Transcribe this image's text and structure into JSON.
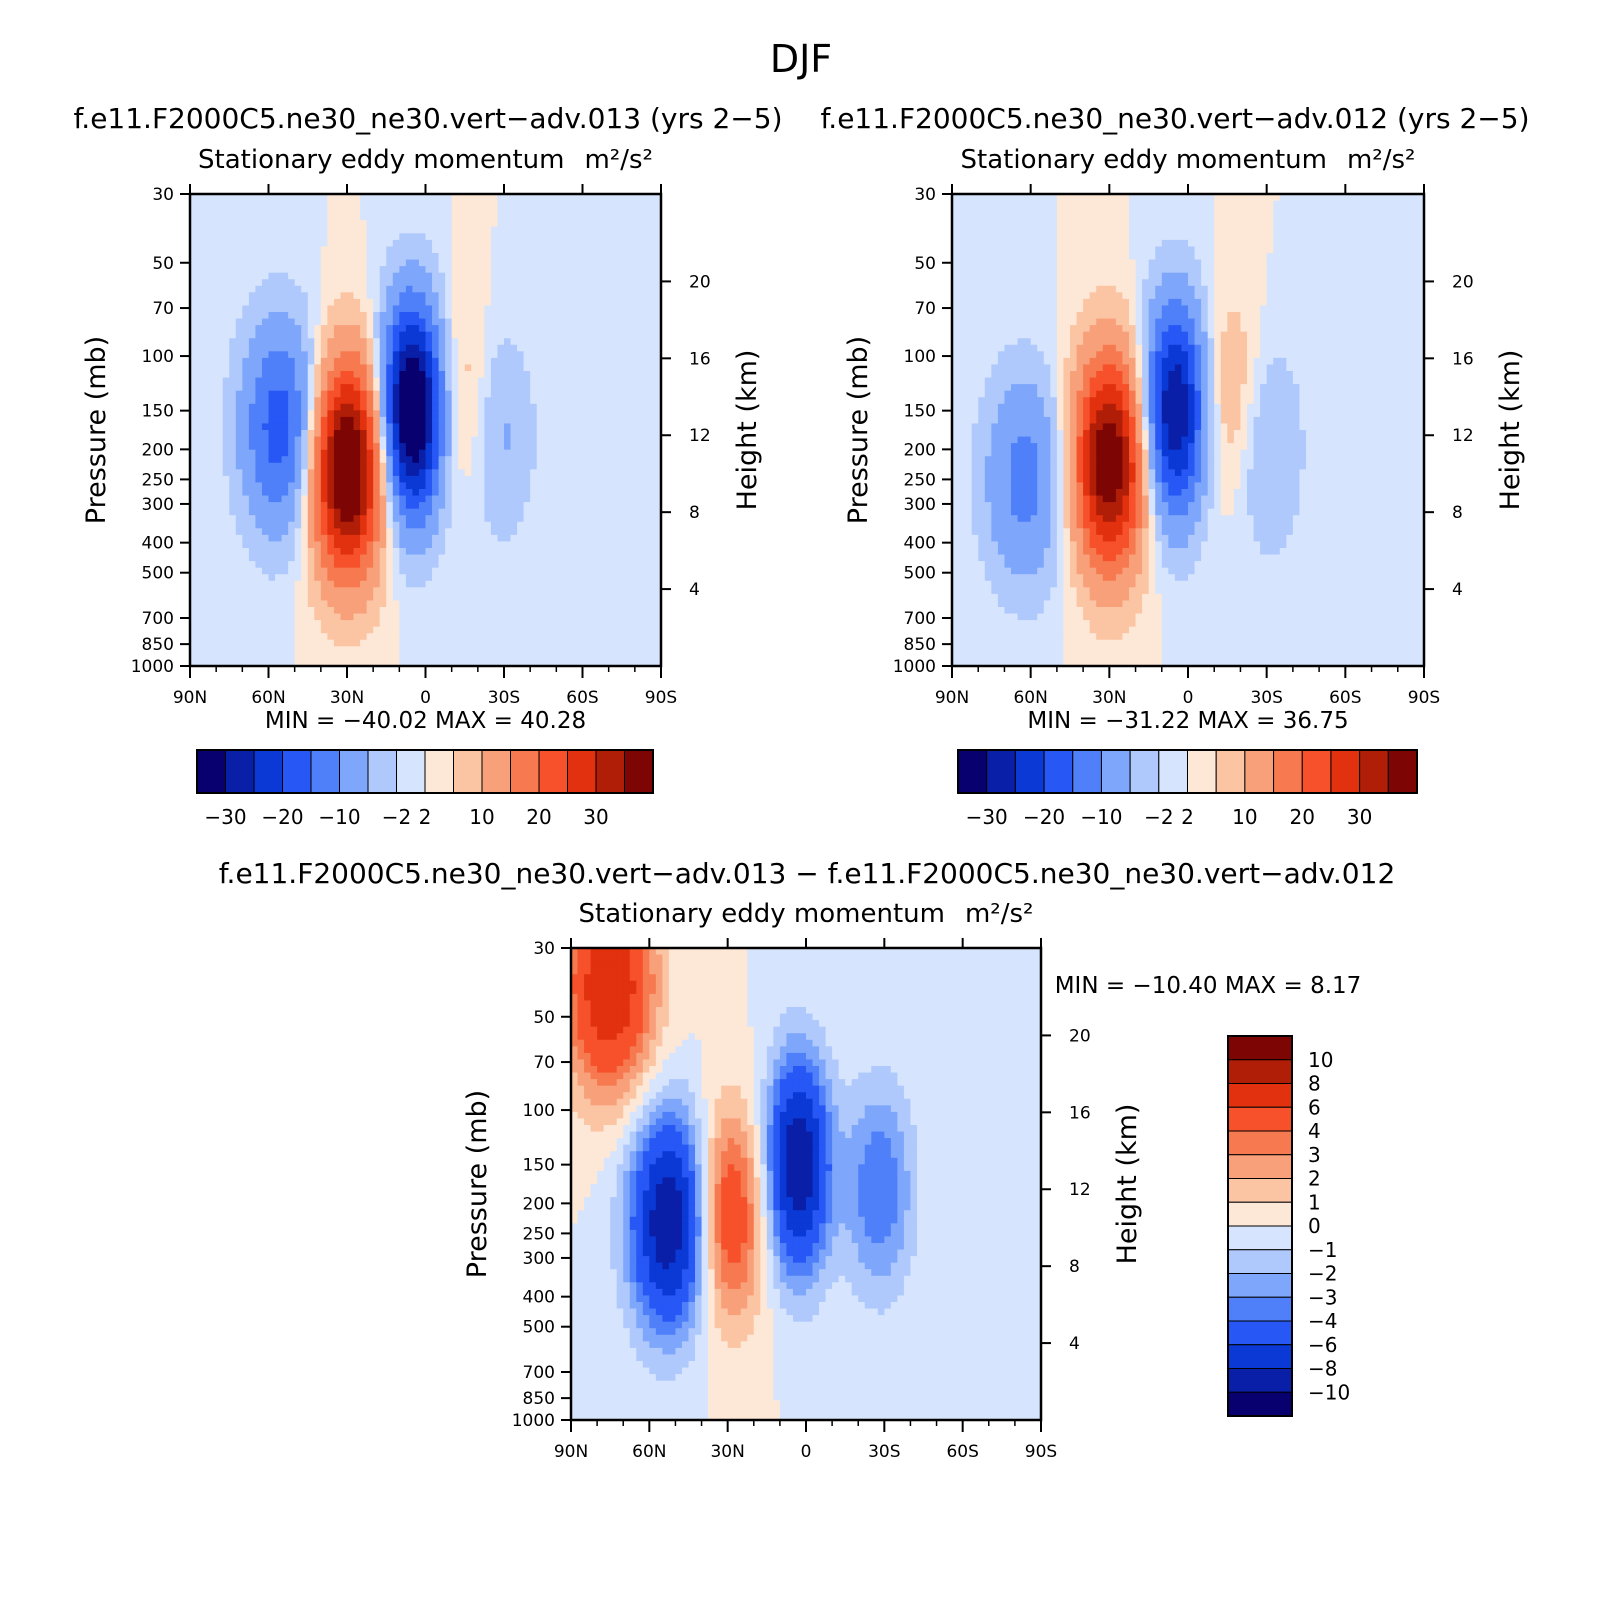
{
  "figure_title": "DJF",
  "colors": {
    "main": [
      "#08006e",
      "#0a1fa8",
      "#0b39d6",
      "#2757f5",
      "#4f80fa",
      "#7ea7fc",
      "#b0c9fd",
      "#d6e5fd",
      "#fde8d7",
      "#fbc5a4",
      "#f8a07a",
      "#f67950",
      "#f7512b",
      "#e2310f",
      "#b11e08",
      "#7d0604"
    ],
    "diff": [
      "#08006e",
      "#0a1fa8",
      "#0b39d6",
      "#2757f5",
      "#4f80fa",
      "#7ea7fc",
      "#b0c9fd",
      "#d6e5fd",
      "#fde8d7",
      "#fbc5a4",
      "#f8a07a",
      "#f67950",
      "#f7512b",
      "#e2310f",
      "#b11e08",
      "#7d0604"
    ],
    "background_light_blue": "#d6e5fd"
  },
  "chart_data": [
    {
      "id": "p1",
      "type": "contour",
      "title": "f.e11.F2000C5.ne30_ne30.vert−adv.013 (yrs 2−5)",
      "subtitle": "Stationary eddy momentum",
      "units": "m²/s²",
      "xlabel": "",
      "ylabel": "Pressure (mb)",
      "ylabel_right": "Height (km)",
      "x_ticks": [
        "90N",
        "60N",
        "30N",
        "0",
        "30S",
        "60S",
        "90S"
      ],
      "xlim": [
        90,
        -90
      ],
      "y_ticks": [
        "30",
        "50",
        "70",
        "100",
        "150",
        "200",
        "250",
        "300",
        "400",
        "500",
        "700",
        "850",
        "1000"
      ],
      "ylim": [
        1000,
        30
      ],
      "right_ticks": [
        "20",
        "16",
        "12",
        "8",
        "4"
      ],
      "stats": "MIN = −40.02   MAX =   40.28",
      "levels": [
        -30,
        -25,
        -20,
        -15,
        -10,
        -5,
        -2,
        0,
        2,
        5,
        10,
        15,
        20,
        25,
        30
      ],
      "colorbar_labels": [
        "−30",
        "−20",
        "−10",
        "−2",
        "2",
        "10",
        "20",
        "30"
      ],
      "features": [
        {
          "lat": 55,
          "p": 170,
          "sign": -1,
          "amp": 18
        },
        {
          "lat": 30,
          "p": 230,
          "sign": 1,
          "amp": 40
        },
        {
          "lat": 5,
          "p": 150,
          "sign": -1,
          "amp": 40
        },
        {
          "lat": -13,
          "p": 140,
          "sign": 1,
          "amp": 6
        },
        {
          "lat": -28,
          "p": 180,
          "sign": -1,
          "amp": 6
        }
      ]
    },
    {
      "id": "p2",
      "type": "contour",
      "title": "f.e11.F2000C5.ne30_ne30.vert−adv.012 (yrs 2−5)",
      "subtitle": "Stationary eddy momentum",
      "units": "m²/s²",
      "xlabel": "",
      "ylabel": "Pressure (mb)",
      "ylabel_right": "Height (km)",
      "x_ticks": [
        "90N",
        "60N",
        "30N",
        "0",
        "30S",
        "60S",
        "90S"
      ],
      "xlim": [
        90,
        -90
      ],
      "y_ticks": [
        "30",
        "50",
        "70",
        "100",
        "150",
        "200",
        "250",
        "300",
        "400",
        "500",
        "700",
        "850",
        "1000"
      ],
      "ylim": [
        1000,
        30
      ],
      "right_ticks": [
        "20",
        "16",
        "12",
        "8",
        "4"
      ],
      "stats": "MIN = −31.22   MAX =   36.75",
      "levels": [
        -30,
        -25,
        -20,
        -15,
        -10,
        -5,
        -2,
        0,
        2,
        5,
        10,
        15,
        20,
        25,
        30
      ],
      "colorbar_labels": [
        "−30",
        "−20",
        "−10",
        "−2",
        "2",
        "10",
        "20",
        "30"
      ],
      "features": [
        {
          "lat": 62,
          "p": 250,
          "sign": -1,
          "amp": 12
        },
        {
          "lat": 30,
          "p": 220,
          "sign": 1,
          "amp": 36
        },
        {
          "lat": 5,
          "p": 150,
          "sign": -1,
          "amp": 31
        },
        {
          "lat": -16,
          "p": 140,
          "sign": 1,
          "amp": 6
        },
        {
          "lat": -30,
          "p": 200,
          "sign": -1,
          "amp": 6
        }
      ]
    },
    {
      "id": "p3",
      "type": "contour",
      "title": "f.e11.F2000C5.ne30_ne30.vert−adv.013 − f.e11.F2000C5.ne30_ne30.vert−adv.012",
      "subtitle": "Stationary eddy momentum",
      "units": "m²/s²",
      "xlabel": "",
      "ylabel": "Pressure (mb)",
      "ylabel_right": "Height (km)",
      "x_ticks": [
        "90N",
        "60N",
        "30N",
        "0",
        "30S",
        "60S",
        "90S"
      ],
      "xlim": [
        90,
        -90
      ],
      "y_ticks": [
        "30",
        "50",
        "70",
        "100",
        "150",
        "200",
        "250",
        "300",
        "400",
        "500",
        "700",
        "850",
        "1000"
      ],
      "ylim": [
        1000,
        30
      ],
      "right_ticks": [
        "20",
        "16",
        "12",
        "8",
        "4"
      ],
      "stats": "MIN = −10.40   MAX =    8.17",
      "levels": [
        -10,
        -8,
        -6,
        -4,
        -3,
        -2,
        -1,
        0,
        1,
        2,
        3,
        4,
        6,
        8,
        10
      ],
      "colorbar_labels": [
        "10",
        "8",
        "6",
        "4",
        "3",
        "2",
        "1",
        "0",
        "−1",
        "−2",
        "−3",
        "−4",
        "−6",
        "−8",
        "−10"
      ],
      "features": [
        {
          "lat": 75,
          "p": 40,
          "sign": 1,
          "amp": 8
        },
        {
          "lat": 52,
          "p": 230,
          "sign": -1,
          "amp": 10
        },
        {
          "lat": 30,
          "p": 220,
          "sign": 1,
          "amp": 6
        },
        {
          "lat": 3,
          "p": 150,
          "sign": -1,
          "amp": 10
        },
        {
          "lat": -28,
          "p": 180,
          "sign": -1,
          "amp": 4
        }
      ]
    }
  ]
}
